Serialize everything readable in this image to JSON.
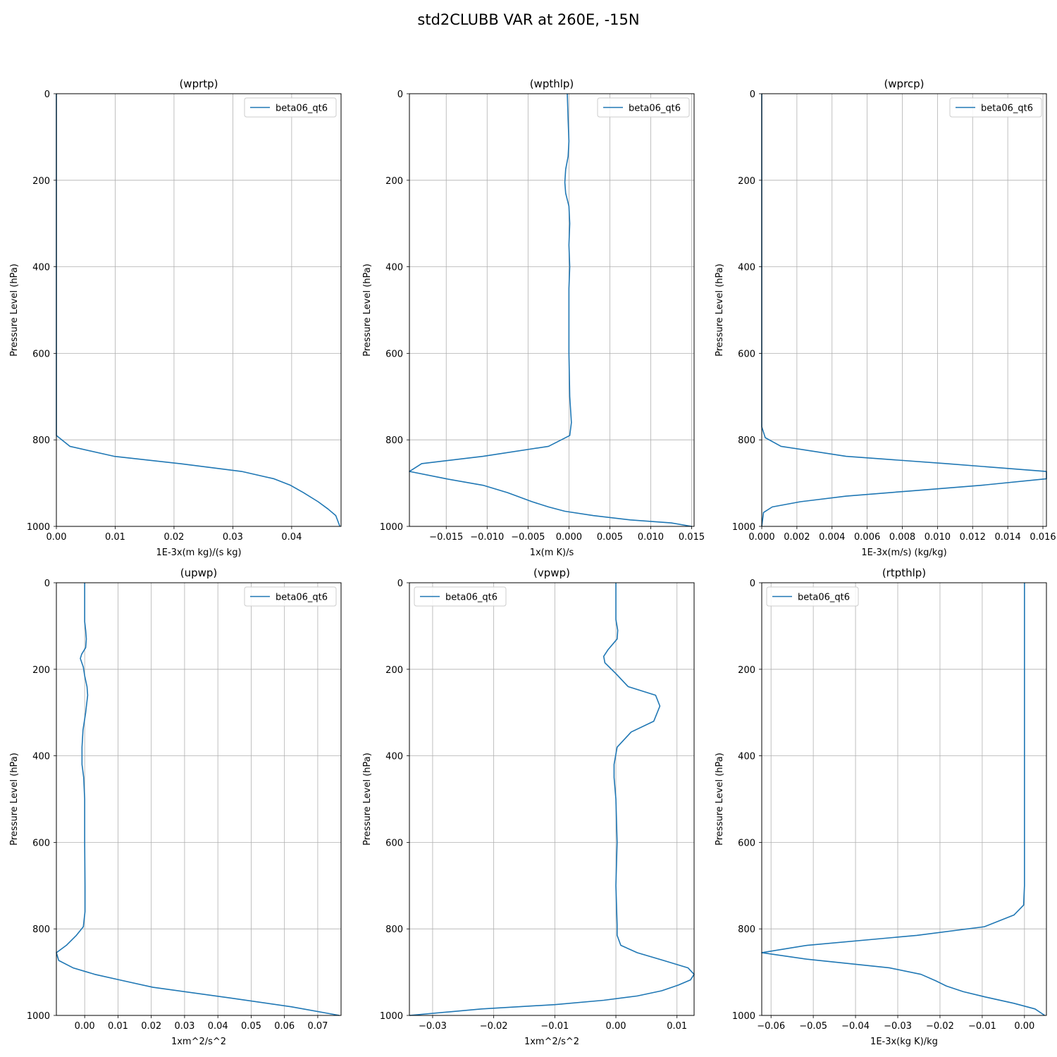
{
  "figure_title": "std2CLUBB VAR at 260E, -15N",
  "series_color": "#1f77b4",
  "chart_data": [
    {
      "type": "line",
      "title": "(wprtp)",
      "xlabel": "1E-3x(m kg)/(s kg)",
      "ylabel": "Pressure Level (hPa)",
      "xlim": [
        0.0,
        0.0484
      ],
      "ylim": [
        1000,
        0
      ],
      "xticks": [
        0.0,
        0.01,
        0.02,
        0.03,
        0.04
      ],
      "xtick_labels": [
        "0.00",
        "0.01",
        "0.02",
        "0.03",
        "0.04"
      ],
      "yticks": [
        0,
        200,
        400,
        600,
        800,
        1000
      ],
      "ytick_labels": [
        "0",
        "200",
        "400",
        "600",
        "800",
        "1000"
      ],
      "grid": true,
      "legend_loc": "upper-right",
      "series": [
        {
          "name": "beta06_qt6",
          "x": [
            0.0,
            0.0,
            0.0,
            0.0,
            0.0,
            0.0,
            0.0,
            0.0,
            0.0,
            0.0,
            0.0023,
            0.0098,
            0.021,
            0.0315,
            0.037,
            0.0398,
            0.042,
            0.0445,
            0.0462,
            0.0475,
            0.0482
          ],
          "y": [
            0,
            100,
            200,
            300,
            400,
            500,
            600,
            700,
            760,
            790,
            815,
            838,
            855,
            873,
            890,
            905,
            922,
            943,
            960,
            975,
            1000
          ]
        }
      ]
    },
    {
      "type": "line",
      "title": "(wpthlp)",
      "xlabel": "1x(m K)/s",
      "ylabel": "Pressure Level (hPa)",
      "xlim": [
        -0.0195,
        0.0153
      ],
      "ylim": [
        1000,
        0
      ],
      "xticks": [
        -0.015,
        -0.01,
        -0.005,
        0.0,
        0.005,
        0.01,
        0.015
      ],
      "xtick_labels": [
        "−0.015",
        "−0.010",
        "−0.005",
        "0.000",
        "0.005",
        "0.010",
        "0.015"
      ],
      "yticks": [
        0,
        200,
        400,
        600,
        800,
        1000
      ],
      "ytick_labels": [
        "0",
        "200",
        "400",
        "600",
        "800",
        "1000"
      ],
      "grid": true,
      "legend_loc": "upper-right",
      "series": [
        {
          "name": "beta06_qt6",
          "x": [
            -0.0002,
            -0.0001,
            0.0,
            -0.0001,
            -0.0004,
            -0.0005,
            -0.0004,
            0.0,
            0.0001,
            0.0,
            0.0001,
            0.0,
            0.0,
            0.0,
            0.0001,
            0.0003,
            0.0001,
            -0.0025,
            -0.0105,
            -0.018,
            -0.0195,
            -0.015,
            -0.0105,
            -0.0075,
            -0.0045,
            -0.0025,
            -0.0005,
            0.003,
            0.0075,
            0.0125,
            0.015
          ],
          "y": [
            0,
            60,
            110,
            145,
            175,
            205,
            230,
            260,
            300,
            350,
            400,
            450,
            500,
            600,
            700,
            760,
            790,
            815,
            838,
            855,
            873,
            890,
            905,
            922,
            943,
            955,
            965,
            975,
            985,
            992,
            1000
          ]
        }
      ]
    },
    {
      "type": "line",
      "title": "(wprcp)",
      "xlabel": "1E-3x(m/s) (kg/kg)",
      "ylabel": "Pressure Level (hPa)",
      "xlim": [
        0.0,
        0.0162
      ],
      "ylim": [
        1000,
        0
      ],
      "xticks": [
        0.0,
        0.002,
        0.004,
        0.006,
        0.008,
        0.01,
        0.012,
        0.014,
        0.016
      ],
      "xtick_labels": [
        "0.000",
        "0.002",
        "0.004",
        "0.006",
        "0.008",
        "0.010",
        "0.012",
        "0.014",
        "0.016"
      ],
      "yticks": [
        0,
        200,
        400,
        600,
        800,
        1000
      ],
      "ytick_labels": [
        "0",
        "200",
        "400",
        "600",
        "800",
        "1000"
      ],
      "grid": true,
      "legend_loc": "upper-right",
      "series": [
        {
          "name": "beta06_qt6",
          "x": [
            0.0,
            0.0,
            0.0,
            0.0,
            0.0,
            0.0,
            0.0,
            0.0,
            0.0,
            0.0002,
            0.0011,
            0.0048,
            0.0105,
            0.0162,
            0.0162,
            0.0125,
            0.0085,
            0.0048,
            0.0022,
            0.0006,
            0.0001,
            0.0
          ],
          "y": [
            0,
            100,
            200,
            300,
            400,
            500,
            600,
            700,
            770,
            795,
            815,
            838,
            855,
            873,
            890,
            905,
            918,
            930,
            943,
            955,
            968,
            1000
          ]
        }
      ]
    },
    {
      "type": "line",
      "title": "(upwp)",
      "xlabel": "1xm^2/s^2",
      "ylabel": "Pressure Level (hPa)",
      "xlim": [
        -0.0085,
        0.077
      ],
      "ylim": [
        1000,
        0
      ],
      "xticks": [
        0.0,
        0.01,
        0.02,
        0.03,
        0.04,
        0.05,
        0.06,
        0.07
      ],
      "xtick_labels": [
        "0.00",
        "0.01",
        "0.02",
        "0.03",
        "0.04",
        "0.05",
        "0.06",
        "0.07"
      ],
      "yticks": [
        0,
        200,
        400,
        600,
        800,
        1000
      ],
      "ytick_labels": [
        "0",
        "200",
        "400",
        "600",
        "800",
        "1000"
      ],
      "grid": true,
      "legend_loc": "upper-right",
      "series": [
        {
          "name": "beta06_qt6",
          "x": [
            0.0,
            0.0,
            0.0003,
            0.0005,
            0.0003,
            -0.0009,
            -0.0013,
            -0.0004,
            0.0,
            0.0007,
            0.0009,
            0.0003,
            -0.0005,
            -0.0008,
            -0.0008,
            -0.0003,
            0.0,
            0.0,
            0.0001,
            0.0001,
            -0.0004,
            -0.0025,
            -0.0055,
            -0.0085,
            -0.0078,
            -0.0035,
            0.003,
            0.0105,
            0.0205,
            0.044,
            0.062,
            0.0765
          ],
          "y": [
            0,
            90,
            110,
            130,
            150,
            165,
            175,
            195,
            215,
            240,
            260,
            300,
            340,
            380,
            420,
            450,
            500,
            600,
            700,
            760,
            795,
            815,
            838,
            855,
            873,
            890,
            905,
            918,
            935,
            960,
            980,
            1000
          ]
        }
      ]
    },
    {
      "type": "line",
      "title": "(vpwp)",
      "xlabel": "1xm^2/s^2",
      "ylabel": "Pressure Level (hPa)",
      "xlim": [
        -0.0338,
        0.0128
      ],
      "ylim": [
        1000,
        0
      ],
      "xticks": [
        -0.03,
        -0.02,
        -0.01,
        0.0,
        0.01
      ],
      "xtick_labels": [
        "−0.03",
        "−0.02",
        "−0.01",
        "0.00",
        "0.01"
      ],
      "yticks": [
        0,
        200,
        400,
        600,
        800,
        1000
      ],
      "ytick_labels": [
        "0",
        "200",
        "400",
        "600",
        "800",
        "1000"
      ],
      "grid": true,
      "legend_loc": "upper-left",
      "series": [
        {
          "name": "beta06_qt6",
          "x": [
            0.0,
            0.0,
            0.0003,
            0.0002,
            -0.0013,
            -0.002,
            -0.0018,
            0.0,
            0.002,
            0.0065,
            0.0072,
            0.0062,
            0.0025,
            0.0002,
            -0.0003,
            -0.0003,
            0.0,
            0.0002,
            0.0,
            0.0002,
            0.0002,
            0.0008,
            0.0035,
            0.0078,
            0.0118,
            0.0128,
            0.0122,
            0.0102,
            0.0075,
            0.0035,
            -0.002,
            -0.01,
            -0.022,
            -0.0338
          ],
          "y": [
            0,
            85,
            110,
            130,
            155,
            170,
            185,
            210,
            240,
            260,
            285,
            320,
            345,
            380,
            420,
            450,
            500,
            600,
            700,
            790,
            815,
            838,
            855,
            873,
            890,
            905,
            918,
            930,
            943,
            955,
            965,
            975,
            985,
            1000
          ]
        }
      ]
    },
    {
      "type": "line",
      "title": "(rtpthlp)",
      "xlabel": "1E-3x(kg K)/kg",
      "ylabel": "Pressure Level (hPa)",
      "xlim": [
        -0.0622,
        0.0052
      ],
      "ylim": [
        1000,
        0
      ],
      "xticks": [
        -0.06,
        -0.05,
        -0.04,
        -0.03,
        -0.02,
        -0.01,
        0.0
      ],
      "xtick_labels": [
        "−0.06",
        "−0.05",
        "−0.04",
        "−0.03",
        "−0.02",
        "−0.01",
        "0.00"
      ],
      "yticks": [
        0,
        200,
        400,
        600,
        800,
        1000
      ],
      "ytick_labels": [
        "0",
        "200",
        "400",
        "600",
        "800",
        "1000"
      ],
      "grid": true,
      "legend_loc": "upper-left",
      "series": [
        {
          "name": "beta06_qt6",
          "x": [
            0.0,
            0.0,
            0.0,
            0.0,
            0.0,
            0.0,
            0.0,
            0.0,
            -0.0002,
            -0.0025,
            -0.0095,
            -0.0255,
            -0.0515,
            -0.0622,
            -0.0515,
            -0.032,
            -0.0245,
            -0.021,
            -0.0185,
            -0.0145,
            -0.009,
            -0.0025,
            0.0025,
            0.0048
          ],
          "y": [
            0,
            100,
            200,
            300,
            400,
            500,
            600,
            700,
            745,
            768,
            795,
            815,
            838,
            855,
            870,
            890,
            905,
            920,
            932,
            945,
            958,
            972,
            985,
            1000
          ]
        }
      ]
    }
  ]
}
